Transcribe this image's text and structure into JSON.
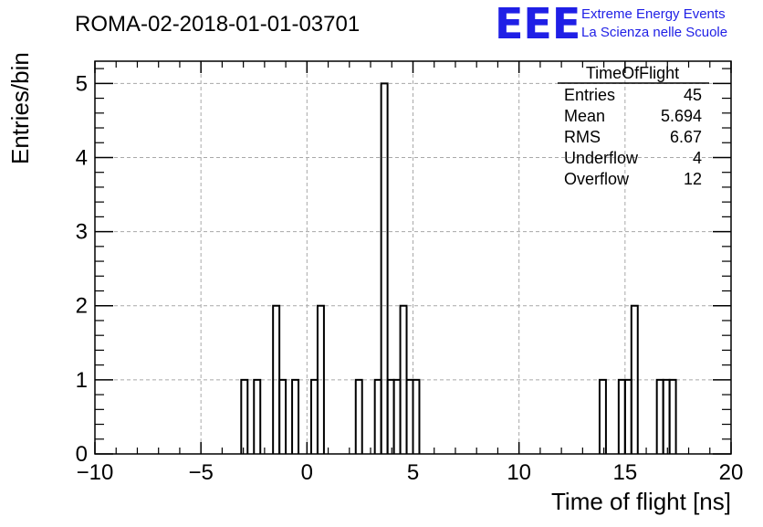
{
  "header": {
    "run_title": "ROMA-02-2018-01-01-03701",
    "logo_mark": "EEE",
    "logo_line1": "Extreme Energy Events",
    "logo_line2": "La Scienza nelle Scuole",
    "logo_color": "#1f1fe6"
  },
  "stats_box": {
    "title": "TimeOfFlight",
    "rows": [
      {
        "label": "Entries",
        "value": "45"
      },
      {
        "label": "Mean",
        "value": "5.694"
      },
      {
        "label": "RMS",
        "value": "6.67"
      },
      {
        "label": "Underflow",
        "value": "4"
      },
      {
        "label": "Overflow",
        "value": "12"
      }
    ]
  },
  "chart_data": {
    "type": "histogram",
    "xlabel": "Time of flight [ns]",
    "ylabel": "Entries/bin",
    "xlim": [
      -10,
      20
    ],
    "ylim": [
      0,
      5.3
    ],
    "grid": true,
    "line_color": "#000000",
    "x_ticks": [
      -10,
      -5,
      0,
      5,
      10,
      15,
      20
    ],
    "x_tick_labels": [
      "−10",
      "−5",
      "0",
      "5",
      "10",
      "15",
      "20"
    ],
    "y_ticks": [
      0,
      1,
      2,
      3,
      4,
      5
    ],
    "y_tick_labels": [
      "0",
      "1",
      "2",
      "3",
      "4",
      "5"
    ],
    "bin_width": 0.3,
    "bins": [
      {
        "x": -3.1,
        "value": 1
      },
      {
        "x": -2.5,
        "value": 1
      },
      {
        "x": -1.6,
        "value": 2
      },
      {
        "x": -1.3,
        "value": 1
      },
      {
        "x": -0.7,
        "value": 1
      },
      {
        "x": 0.2,
        "value": 1
      },
      {
        "x": 0.5,
        "value": 2
      },
      {
        "x": 2.3,
        "value": 1
      },
      {
        "x": 3.2,
        "value": 1
      },
      {
        "x": 3.5,
        "value": 5
      },
      {
        "x": 3.8,
        "value": 1
      },
      {
        "x": 4.1,
        "value": 1
      },
      {
        "x": 4.4,
        "value": 2
      },
      {
        "x": 4.7,
        "value": 1
      },
      {
        "x": 5.0,
        "value": 1
      },
      {
        "x": 13.8,
        "value": 1
      },
      {
        "x": 14.7,
        "value": 1
      },
      {
        "x": 15.0,
        "value": 1
      },
      {
        "x": 15.3,
        "value": 2
      },
      {
        "x": 16.5,
        "value": 1
      },
      {
        "x": 16.8,
        "value": 1
      },
      {
        "x": 17.1,
        "value": 1
      }
    ]
  }
}
